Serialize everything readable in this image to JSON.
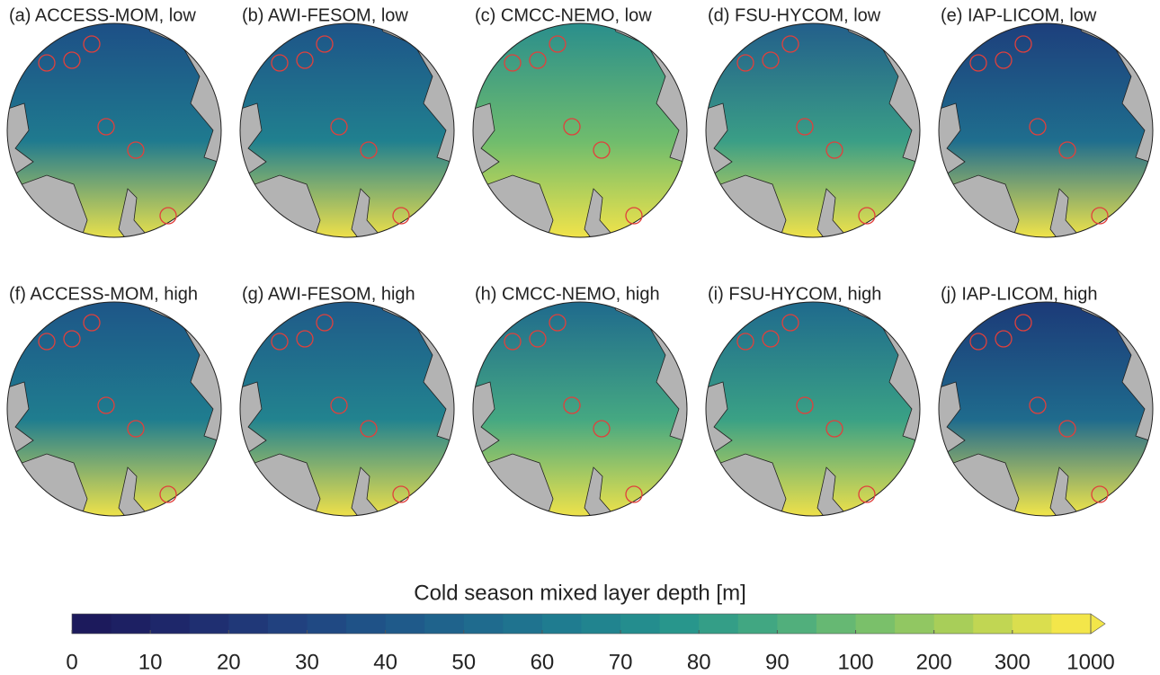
{
  "panels": [
    {
      "title": "(a) ACCESS-MOM, low"
    },
    {
      "title": "(b) AWI-FESOM, low"
    },
    {
      "title": "(c) CMCC-NEMO, low"
    },
    {
      "title": "(d) FSU-HYCOM, low"
    },
    {
      "title": "(e) IAP-LICOM, low"
    },
    {
      "title": "(f) ACCESS-MOM, high"
    },
    {
      "title": "(g) AWI-FESOM, high"
    },
    {
      "title": "(h) CMCC-NEMO, high"
    },
    {
      "title": "(i) FSU-HYCOM, high"
    },
    {
      "title": "(j) IAP-LICOM, high"
    }
  ],
  "colorbar": {
    "label": "Cold season mixed layer depth [m]",
    "ticks": [
      0,
      10,
      20,
      30,
      40,
      50,
      60,
      70,
      80,
      90,
      100,
      200,
      300,
      1000
    ],
    "colors": [
      "#1c1a5c",
      "#1f2a6e",
      "#21417f",
      "#1f5689",
      "#1f6b8e",
      "#1f8090",
      "#28968c",
      "#47ab80",
      "#7ac06a",
      "#b4d255",
      "#f3e64a"
    ]
  }
}
